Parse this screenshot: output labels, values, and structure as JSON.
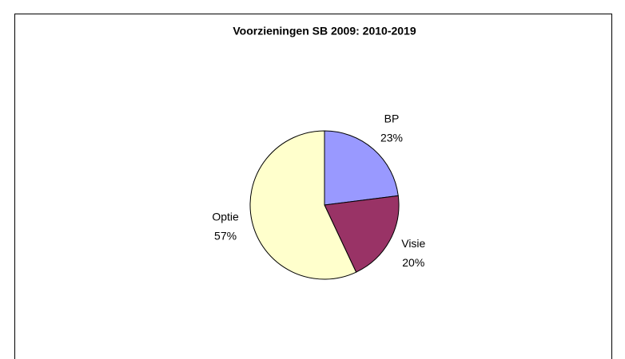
{
  "chart_data": {
    "type": "pie",
    "title": "Voorzieningen SB 2009: 2010-2019",
    "categories": [
      "BP",
      "Visie",
      "Optie"
    ],
    "values": [
      23,
      20,
      57
    ],
    "value_labels": [
      "23%",
      "20%",
      "57%"
    ],
    "colors": [
      "#9999ff",
      "#993366",
      "#ffffcc"
    ]
  }
}
